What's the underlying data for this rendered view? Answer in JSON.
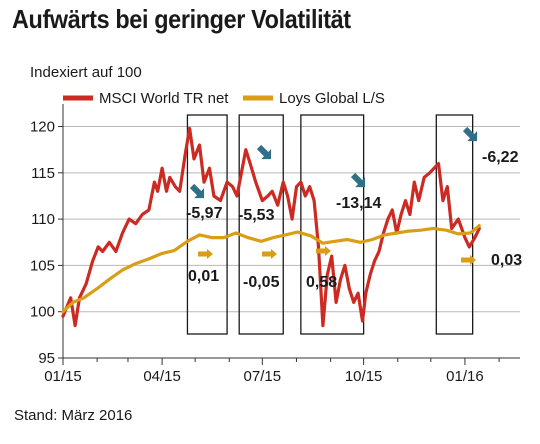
{
  "chart_data": {
    "type": "line",
    "title": "Aufwärts bei geringer Volatilität",
    "ylabel": "Indexiert auf 100",
    "source": "Stand: März 2016",
    "ylim": [
      95,
      122
    ],
    "yticks": [
      95,
      100,
      105,
      110,
      115,
      120
    ],
    "xticks": [
      "01/15",
      "04/15",
      "07/15",
      "10/15",
      "01/16"
    ],
    "grid": true,
    "legend_position": "top-left",
    "colors": {
      "msci": "#cc2a22",
      "loys": "#d99e16",
      "arrow": "#2f6f88"
    },
    "series": [
      {
        "name": "MSCI World TR net",
        "points": [
          [
            "2015-01-01",
            99.5
          ],
          [
            "2015-01-08",
            101.5
          ],
          [
            "2015-01-12",
            98.5
          ],
          [
            "2015-01-16",
            101.5
          ],
          [
            "2015-01-22",
            103.0
          ],
          [
            "2015-01-28",
            105.5
          ],
          [
            "2015-02-02",
            107.0
          ],
          [
            "2015-02-06",
            106.5
          ],
          [
            "2015-02-12",
            107.5
          ],
          [
            "2015-02-18",
            106.5
          ],
          [
            "2015-02-24",
            108.5
          ],
          [
            "2015-03-02",
            110.0
          ],
          [
            "2015-03-08",
            109.5
          ],
          [
            "2015-03-14",
            110.5
          ],
          [
            "2015-03-20",
            111.0
          ],
          [
            "2015-03-25",
            114.0
          ],
          [
            "2015-03-28",
            113.0
          ],
          [
            "2015-04-01",
            115.5
          ],
          [
            "2015-04-05",
            113.0
          ],
          [
            "2015-04-08",
            114.5
          ],
          [
            "2015-04-13",
            113.5
          ],
          [
            "2015-04-17",
            113.0
          ],
          [
            "2015-04-22",
            117.0
          ],
          [
            "2015-04-26",
            119.8
          ],
          [
            "2015-04-30",
            116.5
          ],
          [
            "2015-05-05",
            118.0
          ],
          [
            "2015-05-09",
            114.0
          ],
          [
            "2015-05-14",
            115.5
          ],
          [
            "2015-05-18",
            112.5
          ],
          [
            "2015-05-24",
            112.0
          ],
          [
            "2015-05-30",
            114.0
          ],
          [
            "2015-06-04",
            113.5
          ],
          [
            "2015-06-08",
            112.5
          ],
          [
            "2015-06-12",
            115.0
          ],
          [
            "2015-06-16",
            117.5
          ],
          [
            "2015-06-20",
            116.0
          ],
          [
            "2015-06-25",
            114.0
          ],
          [
            "2015-07-01",
            112.0
          ],
          [
            "2015-07-06",
            112.5
          ],
          [
            "2015-07-10",
            113.0
          ],
          [
            "2015-07-15",
            111.5
          ],
          [
            "2015-07-20",
            114.0
          ],
          [
            "2015-07-24",
            112.5
          ],
          [
            "2015-07-28",
            110.0
          ],
          [
            "2015-08-01",
            113.5
          ],
          [
            "2015-08-05",
            114.0
          ],
          [
            "2015-08-09",
            112.5
          ],
          [
            "2015-08-13",
            113.5
          ],
          [
            "2015-08-17",
            112.0
          ],
          [
            "2015-08-21",
            107.0
          ],
          [
            "2015-08-25",
            98.5
          ],
          [
            "2015-08-29",
            104.0
          ],
          [
            "2015-09-02",
            106.0
          ],
          [
            "2015-09-06",
            101.0
          ],
          [
            "2015-09-10",
            103.5
          ],
          [
            "2015-09-14",
            105.0
          ],
          [
            "2015-09-18",
            102.5
          ],
          [
            "2015-09-22",
            101.0
          ],
          [
            "2015-09-26",
            102.0
          ],
          [
            "2015-09-30",
            99.0
          ],
          [
            "2015-10-03",
            102.0
          ],
          [
            "2015-10-07",
            104.0
          ],
          [
            "2015-10-11",
            105.5
          ],
          [
            "2015-10-15",
            106.5
          ],
          [
            "2015-10-19",
            108.5
          ],
          [
            "2015-10-23",
            110.0
          ],
          [
            "2015-10-27",
            111.0
          ],
          [
            "2015-10-31",
            108.5
          ],
          [
            "2015-11-04",
            110.5
          ],
          [
            "2015-11-08",
            112.0
          ],
          [
            "2015-11-12",
            110.5
          ],
          [
            "2015-11-16",
            114.0
          ],
          [
            "2015-11-20",
            112.0
          ],
          [
            "2015-11-25",
            114.5
          ],
          [
            "2015-11-30",
            115.0
          ],
          [
            "2015-12-04",
            115.5
          ],
          [
            "2015-12-08",
            116.0
          ],
          [
            "2015-12-12",
            112.0
          ],
          [
            "2015-12-16",
            113.5
          ],
          [
            "2015-12-20",
            109.0
          ],
          [
            "2015-12-26",
            110.0
          ],
          [
            "2016-01-01",
            108.0
          ],
          [
            "2016-01-05",
            107.0
          ],
          [
            "2016-01-10",
            108.0
          ],
          [
            "2016-01-14",
            109.0
          ]
        ]
      },
      {
        "name": "Loys Global L/S",
        "points": [
          [
            "2015-01-01",
            100.0
          ],
          [
            "2015-01-10",
            101.0
          ],
          [
            "2015-01-20",
            101.5
          ],
          [
            "2015-02-01",
            102.5
          ],
          [
            "2015-02-12",
            103.5
          ],
          [
            "2015-02-24",
            104.5
          ],
          [
            "2015-03-08",
            105.2
          ],
          [
            "2015-03-20",
            105.7
          ],
          [
            "2015-04-01",
            106.3
          ],
          [
            "2015-04-12",
            106.6
          ],
          [
            "2015-04-24",
            107.6
          ],
          [
            "2015-05-05",
            108.3
          ],
          [
            "2015-05-16",
            108.0
          ],
          [
            "2015-05-27",
            108.0
          ],
          [
            "2015-06-07",
            108.5
          ],
          [
            "2015-06-18",
            108.0
          ],
          [
            "2015-06-30",
            107.6
          ],
          [
            "2015-07-11",
            108.0
          ],
          [
            "2015-07-22",
            108.3
          ],
          [
            "2015-08-02",
            108.6
          ],
          [
            "2015-08-14",
            108.2
          ],
          [
            "2015-08-25",
            107.4
          ],
          [
            "2015-09-05",
            107.6
          ],
          [
            "2015-09-16",
            107.8
          ],
          [
            "2015-09-28",
            107.5
          ],
          [
            "2015-10-09",
            107.8
          ],
          [
            "2015-10-20",
            108.3
          ],
          [
            "2015-10-31",
            108.5
          ],
          [
            "2015-11-11",
            108.7
          ],
          [
            "2015-11-22",
            108.8
          ],
          [
            "2015-12-03",
            109.0
          ],
          [
            "2015-12-15",
            108.8
          ],
          [
            "2015-12-26",
            108.4
          ],
          [
            "2016-01-06",
            108.5
          ],
          [
            "2016-01-14",
            109.3
          ]
        ]
      }
    ],
    "highlight_periods": [
      {
        "start": "2015-04-24",
        "end": "2015-05-30",
        "msci_change": "-5,97",
        "loys_change": "0,01"
      },
      {
        "start": "2015-06-10",
        "end": "2015-07-20",
        "msci_change": "-5,53",
        "loys_change": "-0,05"
      },
      {
        "start": "2015-08-05",
        "end": "2015-10-01",
        "msci_change": "-13,14",
        "loys_change": "0,58"
      },
      {
        "start": "2015-12-06",
        "end": "2016-01-08",
        "msci_change": "-6,22",
        "loys_change": "0,03"
      }
    ]
  }
}
